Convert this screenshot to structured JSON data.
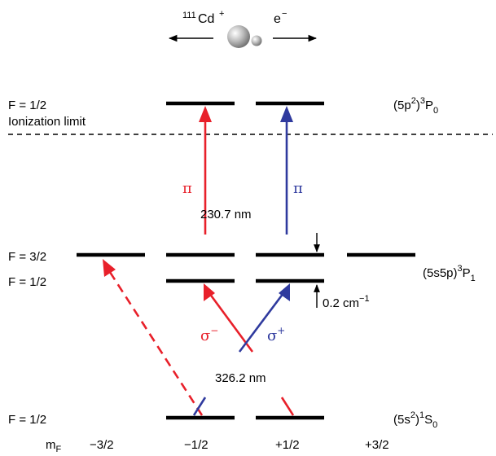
{
  "header": {
    "ion_mass": "111",
    "ion_symbol": "Cd",
    "ion_charge": "+",
    "electron_symbol": "e",
    "electron_charge": "−"
  },
  "levels": {
    "ionization": {
      "f_label": "F = 1/2",
      "limit_label": "Ionization limit",
      "state_prefix": "(5p",
      "state_sup1": "2",
      "state_mid": ")",
      "state_sup2": "3",
      "state_letter": "P",
      "state_sub": "0"
    },
    "intermediate": {
      "f_upper_label": "F = 3/2",
      "f_lower_label": "F = 1/2",
      "state_prefix": "(5s5p)",
      "state_sup": "3",
      "state_letter": "P",
      "state_sub": "1",
      "splitting_value": "0.2 cm",
      "splitting_exp": "−1"
    },
    "ground": {
      "f_label": "F = 1/2",
      "state_prefix": "(5s",
      "state_sup1": "2",
      "state_mid": ")",
      "state_sup2": "1",
      "state_letter": "S",
      "state_sub": "0"
    }
  },
  "transitions": {
    "ionizing_wavelength": "230.7 nm",
    "excitation_wavelength": "326.2 nm",
    "pi_left": "π",
    "pi_right": "π",
    "sigma_minus_symbol": "σ",
    "sigma_minus_sign": "−",
    "sigma_plus_symbol": "σ",
    "sigma_plus_sign": "+"
  },
  "mf_axis": {
    "label_main": "m",
    "label_sub": "F",
    "values": [
      "−3/2",
      "−1/2",
      "+1/2",
      "+3/2"
    ]
  },
  "colors": {
    "sigma_minus_red": "#e8202a",
    "sigma_plus_blue": "#2f3a9e",
    "level_black": "#000000"
  }
}
